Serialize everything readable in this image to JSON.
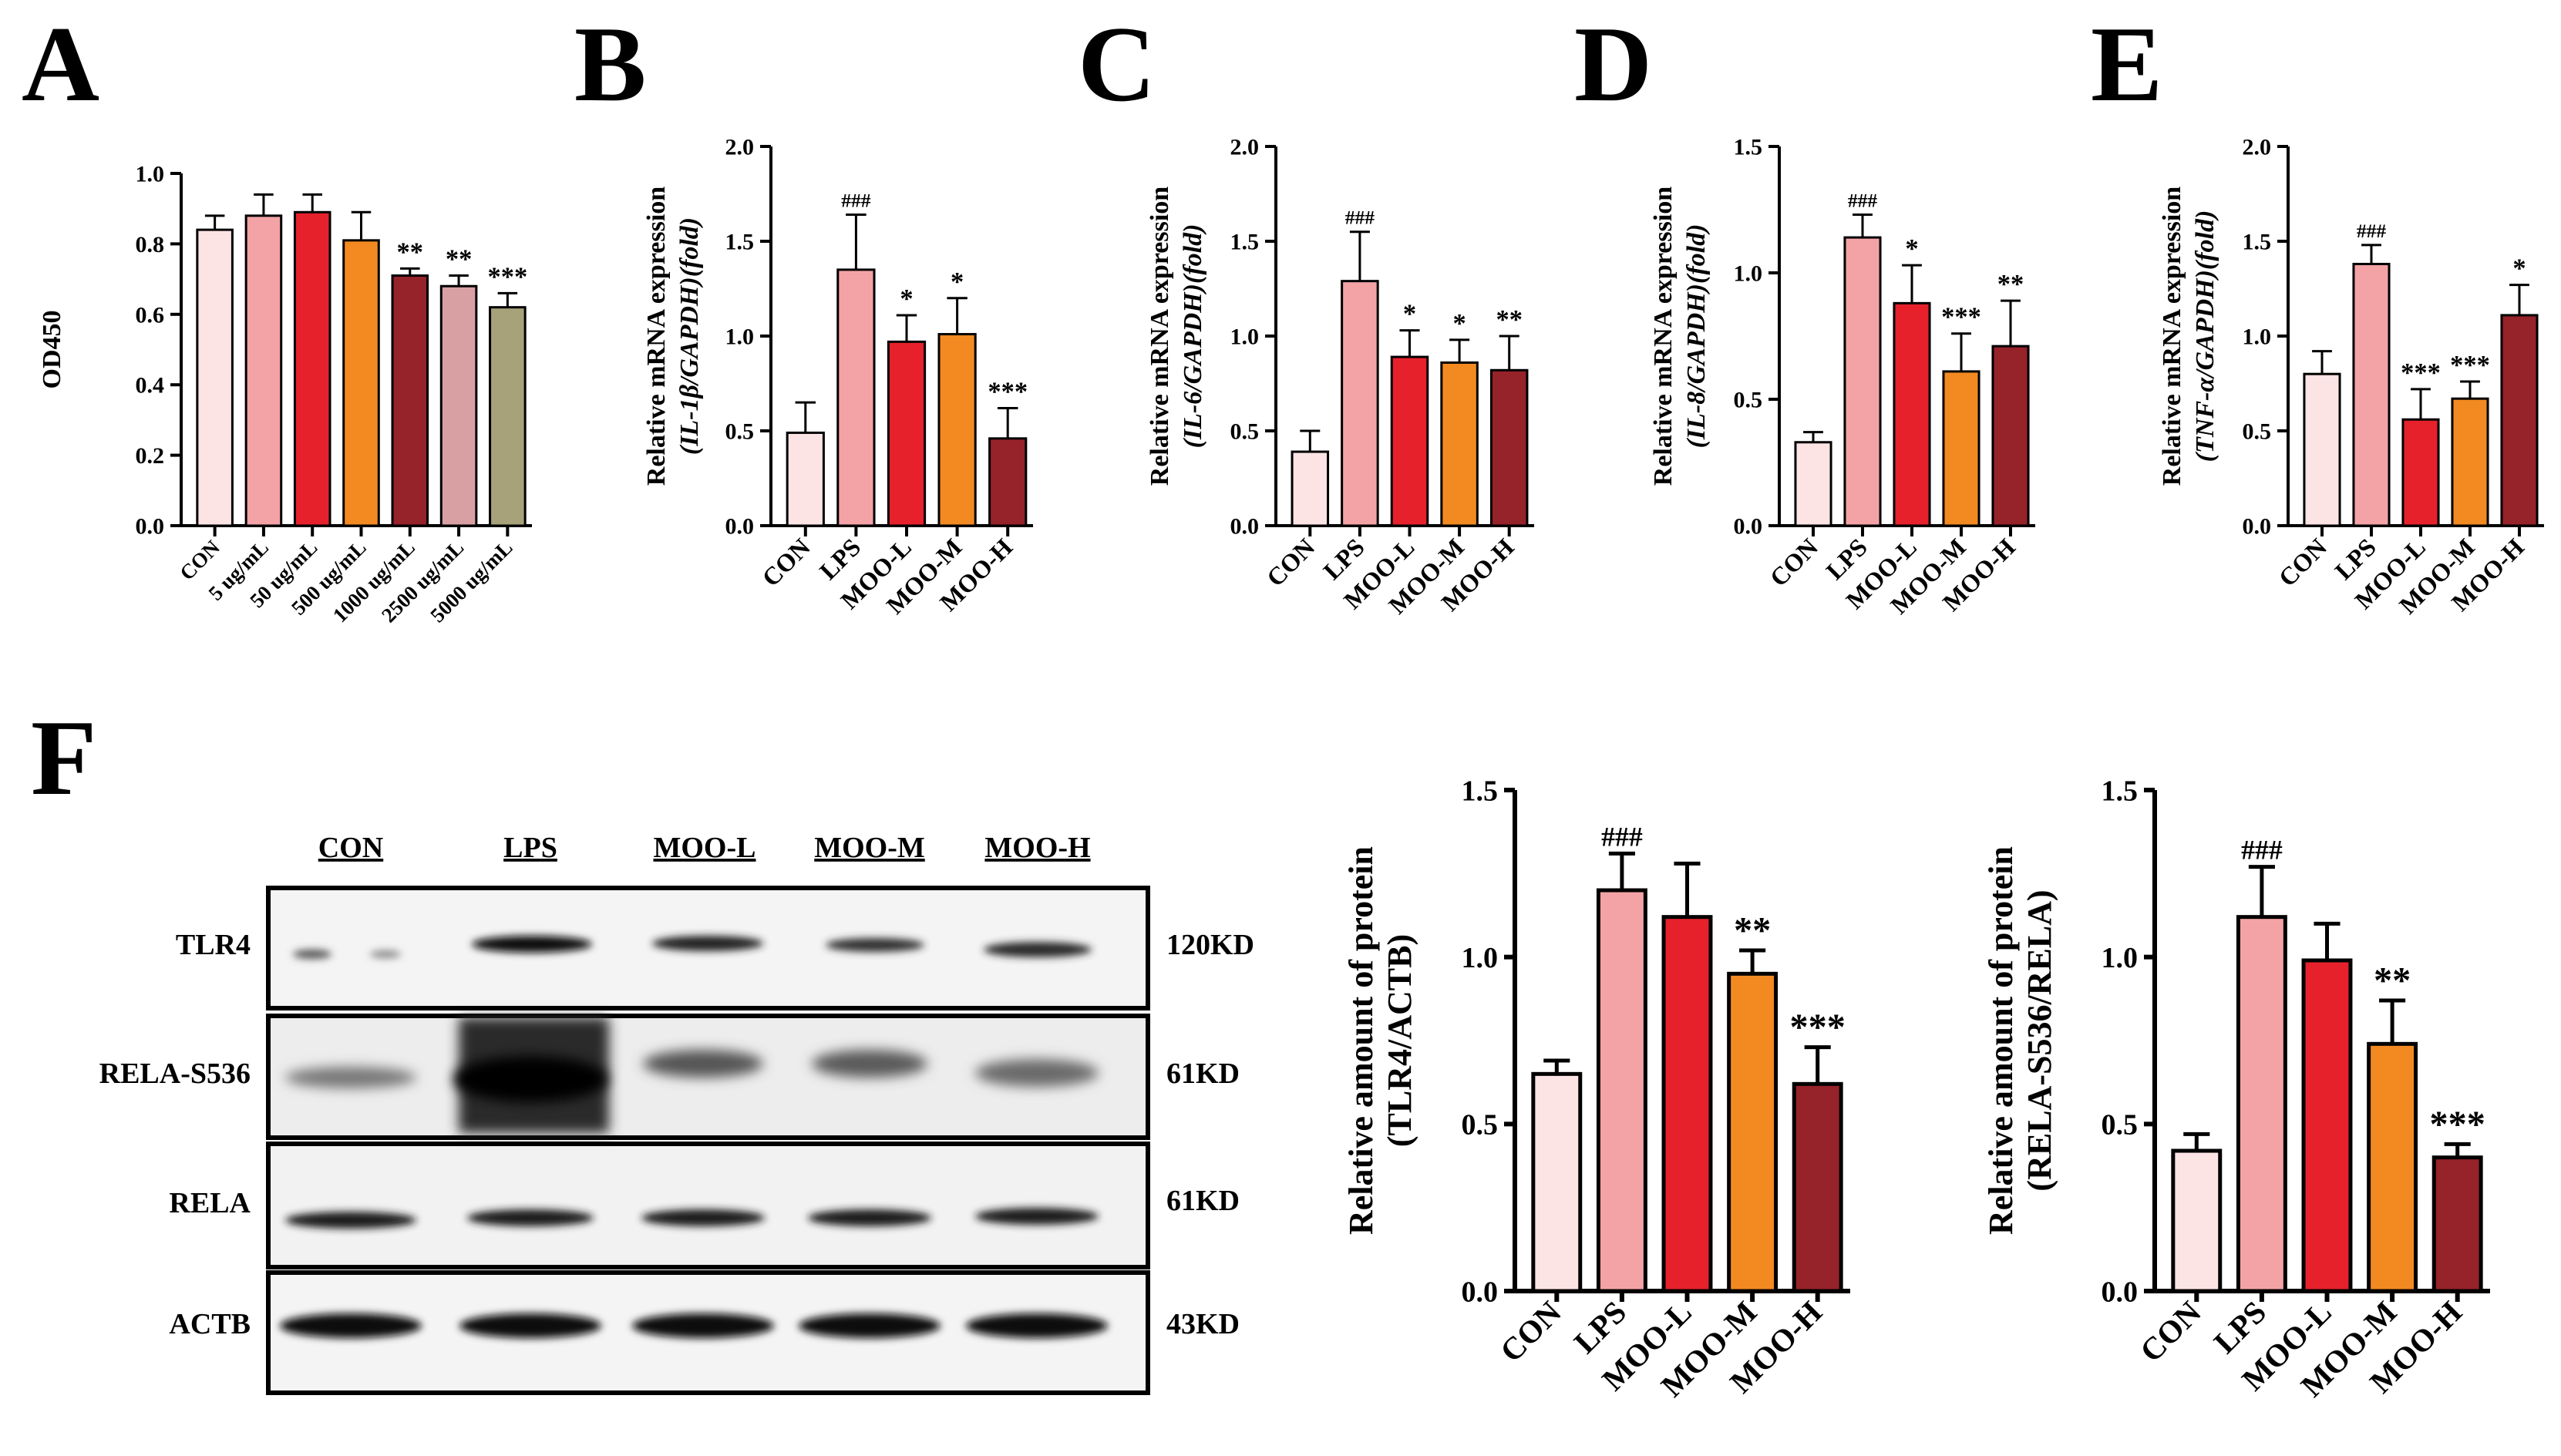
{
  "panel_letters": [
    "A",
    "B",
    "C",
    "D",
    "E",
    "F"
  ],
  "colors": {
    "CON": "#fde4e4",
    "LPS": "#f3a3a6",
    "MOO-L": "#e6212b",
    "MOO-M": "#f28a21",
    "MOO-H": "#96222a",
    "5 ug/mL": "#f3a3a6",
    "50 ug/mL": "#e6212b",
    "500 ug/mL": "#f28a21",
    "1000 ug/mL": "#96222a",
    "2500 ug/mL": "#d9a0a4",
    "5000 ug/mL": "#a8a27a"
  },
  "chart_data": [
    {
      "id": "A",
      "type": "bar",
      "ylabel": "OD450",
      "ylabel_italic": "",
      "ylim": [
        0,
        1.0
      ],
      "yticks": [
        "0.0",
        "0.2",
        "0.4",
        "0.6",
        "0.8",
        "1.0"
      ],
      "categories": [
        "CON",
        "5 ug/mL",
        "50 ug/mL",
        "500 ug/mL",
        "1000 ug/mL",
        "2500 ug/mL",
        "5000 ug/mL"
      ],
      "values": [
        0.84,
        0.88,
        0.89,
        0.81,
        0.71,
        0.68,
        0.62
      ],
      "errors": [
        0.04,
        0.06,
        0.05,
        0.08,
        0.02,
        0.03,
        0.04
      ],
      "annotations": [
        "",
        "",
        "",
        "",
        "**",
        "**",
        "***"
      ]
    },
    {
      "id": "B",
      "type": "bar",
      "ylabel": "Relative mRNA expression",
      "ylabel_italic": "(IL-1β/GAPDH)(fold)",
      "ylim": [
        0,
        2.0
      ],
      "yticks": [
        "0.0",
        "0.5",
        "1.0",
        "1.5",
        "2.0"
      ],
      "categories": [
        "CON",
        "LPS",
        "MOO-L",
        "MOO-M",
        "MOO-H"
      ],
      "values": [
        0.49,
        1.35,
        0.97,
        1.01,
        0.46
      ],
      "errors": [
        0.16,
        0.29,
        0.14,
        0.19,
        0.16
      ],
      "annotations": [
        "",
        "###",
        "*",
        "*",
        "***"
      ]
    },
    {
      "id": "C",
      "type": "bar",
      "ylabel": "Relative mRNA expression",
      "ylabel_italic": "(IL-6/GAPDH)(fold)",
      "ylim": [
        0,
        2.0
      ],
      "yticks": [
        "0.0",
        "0.5",
        "1.0",
        "1.5",
        "2.0"
      ],
      "categories": [
        "CON",
        "LPS",
        "MOO-L",
        "MOO-M",
        "MOO-H"
      ],
      "values": [
        0.39,
        1.29,
        0.89,
        0.86,
        0.82
      ],
      "errors": [
        0.11,
        0.26,
        0.14,
        0.12,
        0.18
      ],
      "annotations": [
        "",
        "###",
        "*",
        "*",
        "**"
      ]
    },
    {
      "id": "D",
      "type": "bar",
      "ylabel": "Relative mRNA expression",
      "ylabel_italic": "(IL-8/GAPDH)(fold)",
      "ylim": [
        0,
        1.5
      ],
      "yticks": [
        "0.0",
        "0.5",
        "1.0",
        "1.5"
      ],
      "categories": [
        "CON",
        "LPS",
        "MOO-L",
        "MOO-M",
        "MOO-H"
      ],
      "values": [
        0.33,
        1.14,
        0.88,
        0.61,
        0.71
      ],
      "errors": [
        0.04,
        0.09,
        0.15,
        0.15,
        0.18
      ],
      "annotations": [
        "",
        "###",
        "*",
        "***",
        "**"
      ]
    },
    {
      "id": "E",
      "type": "bar",
      "ylabel": "Relative mRNA expression",
      "ylabel_italic": "(TNF-α/GAPDH)(fold)",
      "ylim": [
        0,
        2.0
      ],
      "yticks": [
        "0.0",
        "0.5",
        "1.0",
        "1.5",
        "2.0"
      ],
      "categories": [
        "CON",
        "LPS",
        "MOO-L",
        "MOO-M",
        "MOO-H"
      ],
      "values": [
        0.8,
        1.38,
        0.56,
        0.67,
        1.11
      ],
      "errors": [
        0.12,
        0.1,
        0.16,
        0.09,
        0.16
      ],
      "annotations": [
        "",
        "###",
        "***",
        "***",
        "*"
      ]
    },
    {
      "id": "F1",
      "type": "bar",
      "ylabel": "Relative amount of protein",
      "ylabel2": "(TLR4/ACTB)",
      "ylim": [
        0,
        1.5
      ],
      "yticks": [
        "0.0",
        "0.5",
        "1.0",
        "1.5"
      ],
      "categories": [
        "CON",
        "LPS",
        "MOO-L",
        "MOO-M",
        "MOO-H"
      ],
      "values": [
        0.65,
        1.2,
        1.12,
        0.95,
        0.62
      ],
      "errors": [
        0.04,
        0.11,
        0.16,
        0.07,
        0.11
      ],
      "annotations": [
        "",
        "###",
        "",
        "**",
        "***"
      ]
    },
    {
      "id": "F2",
      "type": "bar",
      "ylabel": "Relative amount of protein",
      "ylabel2": "(RELA-S536/RELA)",
      "ylim": [
        0,
        1.5
      ],
      "yticks": [
        "0.0",
        "0.5",
        "1.0",
        "1.5"
      ],
      "categories": [
        "CON",
        "LPS",
        "MOO-L",
        "MOO-M",
        "MOO-H"
      ],
      "values": [
        0.42,
        1.12,
        0.99,
        0.74,
        0.4
      ],
      "errors": [
        0.05,
        0.15,
        0.11,
        0.13,
        0.04
      ],
      "annotations": [
        "",
        "###",
        "",
        "**",
        "***"
      ]
    }
  ],
  "blot": {
    "lanes": [
      "CON",
      "LPS",
      "MOO-L",
      "MOO-M",
      "MOO-H"
    ],
    "rows": [
      {
        "protein": "TLR4",
        "size": "120KD"
      },
      {
        "protein": "RELA-S536",
        "size": "61KD"
      },
      {
        "protein": "RELA",
        "size": "61KD"
      },
      {
        "protein": "ACTB",
        "size": "43KD"
      }
    ]
  }
}
